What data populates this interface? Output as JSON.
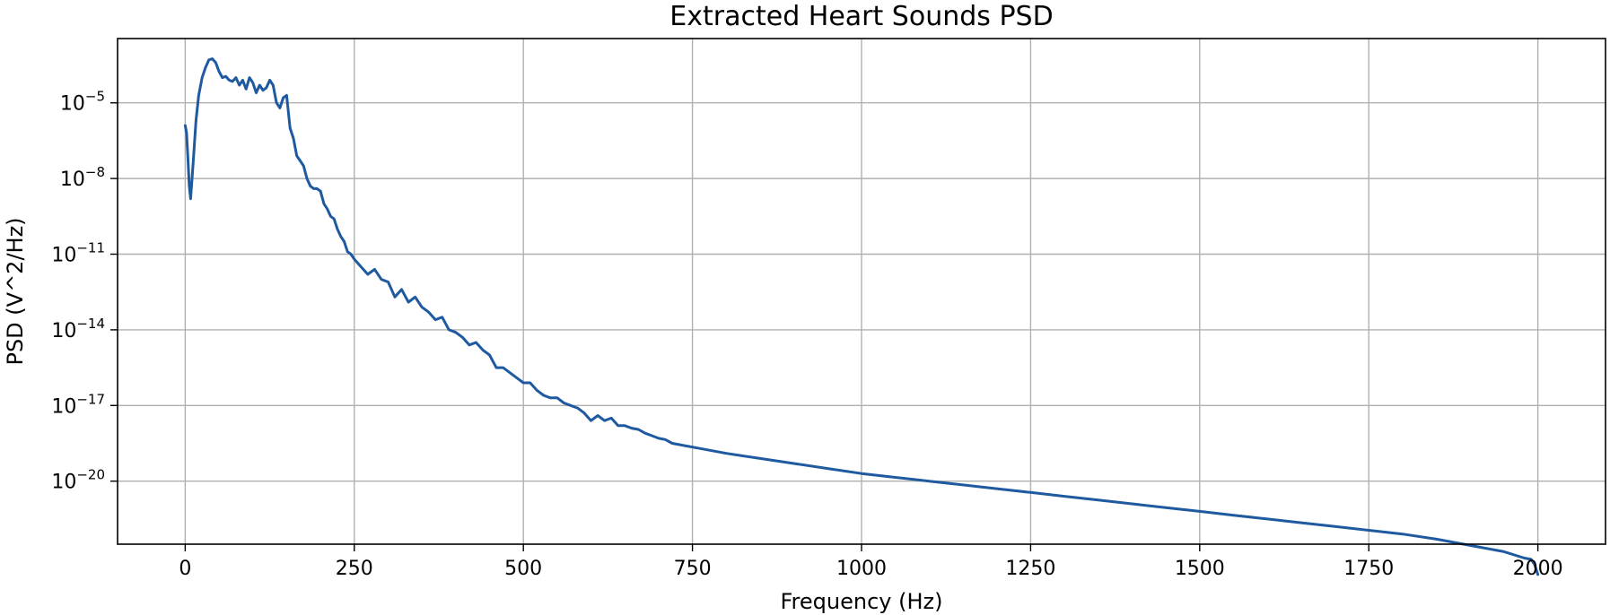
{
  "chart_data": {
    "type": "line",
    "title": "Extracted Heart Sounds PSD",
    "xlabel": "Frequency (Hz)",
    "ylabel": "PSD (V^2/Hz)",
    "xlim": [
      -100,
      2100
    ],
    "ylim_log10": [
      -22.5,
      -2.45
    ],
    "yscale": "log",
    "grid": true,
    "legend": "none",
    "color": "#1f5aa0",
    "x_ticks": [
      0,
      250,
      500,
      750,
      1000,
      1250,
      1500,
      1750,
      2000
    ],
    "x_tick_labels": [
      "0",
      "250",
      "500",
      "750",
      "1000",
      "1250",
      "1500",
      "1750",
      "2000"
    ],
    "y_ticks_log10": [
      -5,
      -8,
      -11,
      -14,
      -17,
      -20
    ],
    "y_tick_labels": [
      {
        "base": "10",
        "exp": "−5"
      },
      {
        "base": "10",
        "exp": "−8"
      },
      {
        "base": "10",
        "exp": "−11"
      },
      {
        "base": "10",
        "exp": "−14"
      },
      {
        "base": "10",
        "exp": "−17"
      },
      {
        "base": "10",
        "exp": "−20"
      }
    ],
    "series": [
      {
        "name": "PSD",
        "x": [
          0,
          2,
          4,
          6,
          8,
          12,
          16,
          20,
          25,
          30,
          35,
          40,
          45,
          50,
          55,
          60,
          65,
          70,
          75,
          80,
          85,
          90,
          95,
          100,
          105,
          110,
          115,
          120,
          125,
          130,
          135,
          140,
          145,
          150,
          155,
          160,
          165,
          170,
          175,
          180,
          185,
          190,
          195,
          200,
          205,
          210,
          215,
          220,
          225,
          230,
          235,
          240,
          245,
          250,
          260,
          270,
          280,
          290,
          300,
          310,
          320,
          330,
          340,
          350,
          360,
          370,
          380,
          390,
          400,
          410,
          420,
          430,
          440,
          450,
          460,
          470,
          480,
          490,
          500,
          510,
          520,
          530,
          540,
          550,
          560,
          570,
          580,
          590,
          600,
          610,
          620,
          630,
          640,
          650,
          660,
          670,
          680,
          690,
          700,
          710,
          720,
          730,
          750,
          800,
          850,
          900,
          950,
          1000,
          1050,
          1100,
          1150,
          1200,
          1250,
          1300,
          1350,
          1400,
          1450,
          1500,
          1550,
          1600,
          1650,
          1700,
          1750,
          1800,
          1850,
          1900,
          1950,
          1980,
          1990,
          1995,
          2000
        ],
        "log10_psd": [
          -5.9,
          -6.2,
          -7.2,
          -8.3,
          -8.8,
          -7.3,
          -5.7,
          -4.7,
          -4.0,
          -3.6,
          -3.3,
          -3.25,
          -3.4,
          -3.75,
          -4.0,
          -3.95,
          -4.1,
          -4.15,
          -4.0,
          -4.3,
          -4.1,
          -4.45,
          -4.0,
          -4.2,
          -4.6,
          -4.3,
          -4.5,
          -4.4,
          -4.1,
          -4.3,
          -5.0,
          -5.2,
          -4.8,
          -4.7,
          -6.0,
          -6.4,
          -7.1,
          -7.3,
          -7.5,
          -8.0,
          -8.3,
          -8.4,
          -8.4,
          -8.5,
          -9.0,
          -9.2,
          -9.5,
          -9.6,
          -10.0,
          -10.3,
          -10.5,
          -10.9,
          -11.0,
          -11.2,
          -11.5,
          -11.8,
          -11.6,
          -12.0,
          -12.1,
          -12.7,
          -12.4,
          -12.9,
          -12.7,
          -13.1,
          -13.3,
          -13.6,
          -13.5,
          -14.0,
          -14.1,
          -14.3,
          -14.6,
          -14.5,
          -14.8,
          -15.0,
          -15.5,
          -15.5,
          -15.7,
          -15.9,
          -16.1,
          -16.1,
          -16.4,
          -16.6,
          -16.7,
          -16.7,
          -16.9,
          -17.0,
          -17.1,
          -17.3,
          -17.6,
          -17.4,
          -17.6,
          -17.5,
          -17.8,
          -17.8,
          -17.9,
          -17.95,
          -18.1,
          -18.2,
          -18.3,
          -18.35,
          -18.5,
          -18.55,
          -18.65,
          -18.9,
          -19.1,
          -19.3,
          -19.5,
          -19.7,
          -19.85,
          -20.0,
          -20.15,
          -20.3,
          -20.45,
          -20.6,
          -20.75,
          -20.9,
          -21.05,
          -21.2,
          -21.35,
          -21.5,
          -21.65,
          -21.8,
          -21.95,
          -22.1,
          -22.3,
          -22.55,
          -22.8,
          -23.05,
          -23.1,
          -23.3,
          -23.7
        ]
      }
    ]
  }
}
